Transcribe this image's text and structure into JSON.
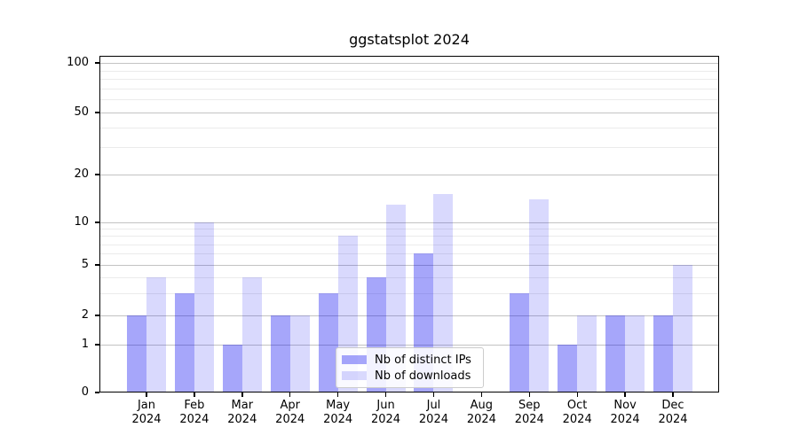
{
  "title": "ggstatsplot 2024",
  "chart_data": {
    "type": "bar",
    "title": "ggstatsplot 2024",
    "categories": [
      "Jan 2024",
      "Feb 2024",
      "Mar 2024",
      "Apr 2024",
      "May 2024",
      "Jun 2024",
      "Jul 2024",
      "Aug 2024",
      "Sep 2024",
      "Oct 2024",
      "Nov 2024",
      "Dec 2024"
    ],
    "series": [
      {
        "name": "Nb of distinct IPs",
        "color": "rgba(0,0,240,0.35)",
        "values": [
          2,
          3,
          1,
          2,
          3,
          4,
          6,
          0,
          3,
          1,
          2,
          2
        ]
      },
      {
        "name": "Nb of downloads",
        "color": "rgba(0,0,240,0.15)",
        "values": [
          4,
          10,
          4,
          2,
          8,
          13,
          15,
          0,
          14,
          2,
          2,
          5
        ]
      }
    ],
    "xlabel": "",
    "ylabel": "",
    "y_axis": {
      "scale": "log-like",
      "major_ticks": [
        0,
        1,
        2,
        5,
        10,
        20,
        50,
        100
      ],
      "minor_gridlines": [
        3,
        4,
        6,
        7,
        8,
        9,
        30,
        40,
        60,
        70,
        80,
        90
      ],
      "range": [
        0,
        110
      ]
    },
    "grid": true,
    "legend_position": "lower center"
  },
  "colors": {
    "bar_distinct_ips": "rgba(0,0,240,0.35)",
    "bar_downloads": "rgba(0,0,240,0.15)",
    "grid_major": "#c3c3c3",
    "grid_minor": "#ebebeb",
    "axis": "#000000",
    "legend_border": "#cccccc"
  }
}
